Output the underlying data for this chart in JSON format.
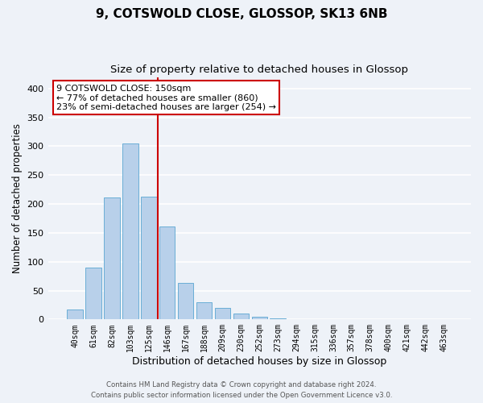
{
  "title": "9, COTSWOLD CLOSE, GLOSSOP, SK13 6NB",
  "subtitle": "Size of property relative to detached houses in Glossop",
  "xlabel": "Distribution of detached houses by size in Glossop",
  "ylabel": "Number of detached properties",
  "bar_labels": [
    "40sqm",
    "61sqm",
    "82sqm",
    "103sqm",
    "125sqm",
    "146sqm",
    "167sqm",
    "188sqm",
    "209sqm",
    "230sqm",
    "252sqm",
    "273sqm",
    "294sqm",
    "315sqm",
    "336sqm",
    "357sqm",
    "378sqm",
    "400sqm",
    "421sqm",
    "442sqm",
    "463sqm"
  ],
  "bar_values": [
    17,
    90,
    211,
    305,
    213,
    161,
    64,
    30,
    20,
    10,
    5,
    2,
    1,
    0,
    0,
    1,
    0,
    0,
    0,
    0,
    1
  ],
  "bar_color": "#b8d0ea",
  "bar_edge_color": "#6aaed6",
  "ylim": [
    0,
    420
  ],
  "yticks": [
    0,
    50,
    100,
    150,
    200,
    250,
    300,
    350,
    400
  ],
  "property_line_x": 4.5,
  "property_line_color": "#cc0000",
  "annotation_text": "9 COTSWOLD CLOSE: 150sqm\n← 77% of detached houses are smaller (860)\n23% of semi-detached houses are larger (254) →",
  "annotation_box_color": "#ffffff",
  "annotation_box_edge": "#cc0000",
  "footer_line1": "Contains HM Land Registry data © Crown copyright and database right 2024.",
  "footer_line2": "Contains public sector information licensed under the Open Government Licence v3.0.",
  "background_color": "#eef2f8",
  "grid_color": "#ffffff",
  "title_fontsize": 11,
  "subtitle_fontsize": 10
}
